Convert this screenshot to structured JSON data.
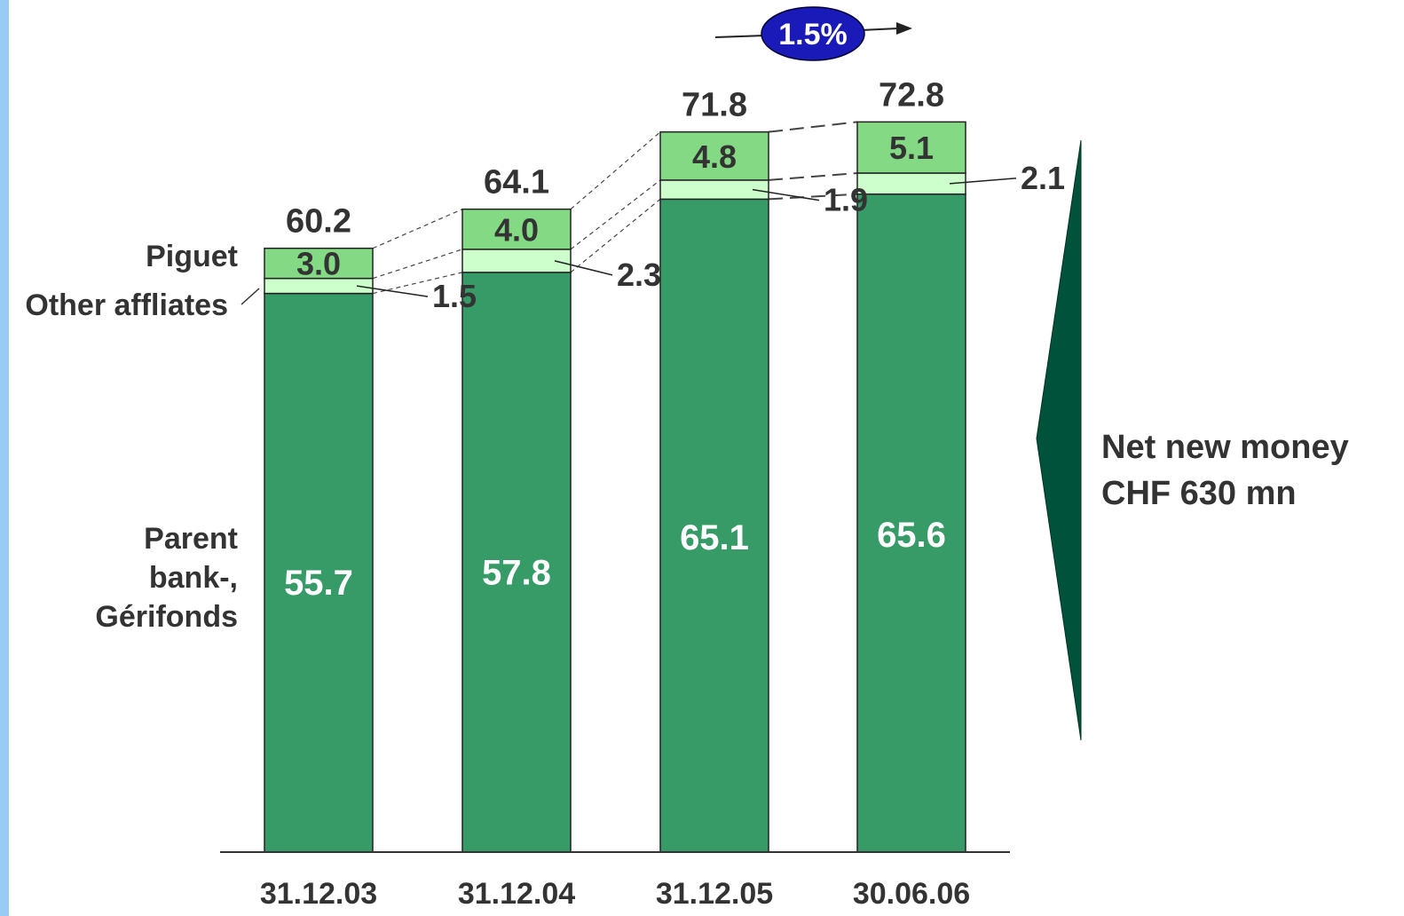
{
  "chart_data": {
    "type": "bar",
    "stacked": true,
    "categories": [
      "31.12.03",
      "31.12.04",
      "31.12.05",
      "30.06.06"
    ],
    "series": [
      {
        "name": "Parent bank-, Gérifonds",
        "values": [
          55.7,
          57.8,
          65.1,
          65.6
        ]
      },
      {
        "name": "Other affliates",
        "values": [
          1.5,
          2.3,
          1.9,
          2.1
        ]
      },
      {
        "name": "Piguet",
        "values": [
          3.0,
          4.0,
          4.8,
          5.1
        ]
      }
    ],
    "totals": [
      60.2,
      64.1,
      71.8,
      72.8
    ],
    "series_labels": {
      "piguet": "Piguet",
      "other": "Other affliates",
      "parent": [
        "Parent",
        "bank-,",
        "Gérifonds"
      ]
    },
    "growth_badge": "1.5%",
    "net_new_money": [
      "Net new money",
      "CHF 630 mn"
    ],
    "colors": {
      "parent": "#379b67",
      "other": "#ccffcc",
      "piguet": "#84d984",
      "badge": "#1a1ab8",
      "arrow_shape": "#00533a",
      "stripe": "#99ccf5",
      "text_dark": "#333333"
    },
    "grid": false,
    "legend": "left labels"
  }
}
